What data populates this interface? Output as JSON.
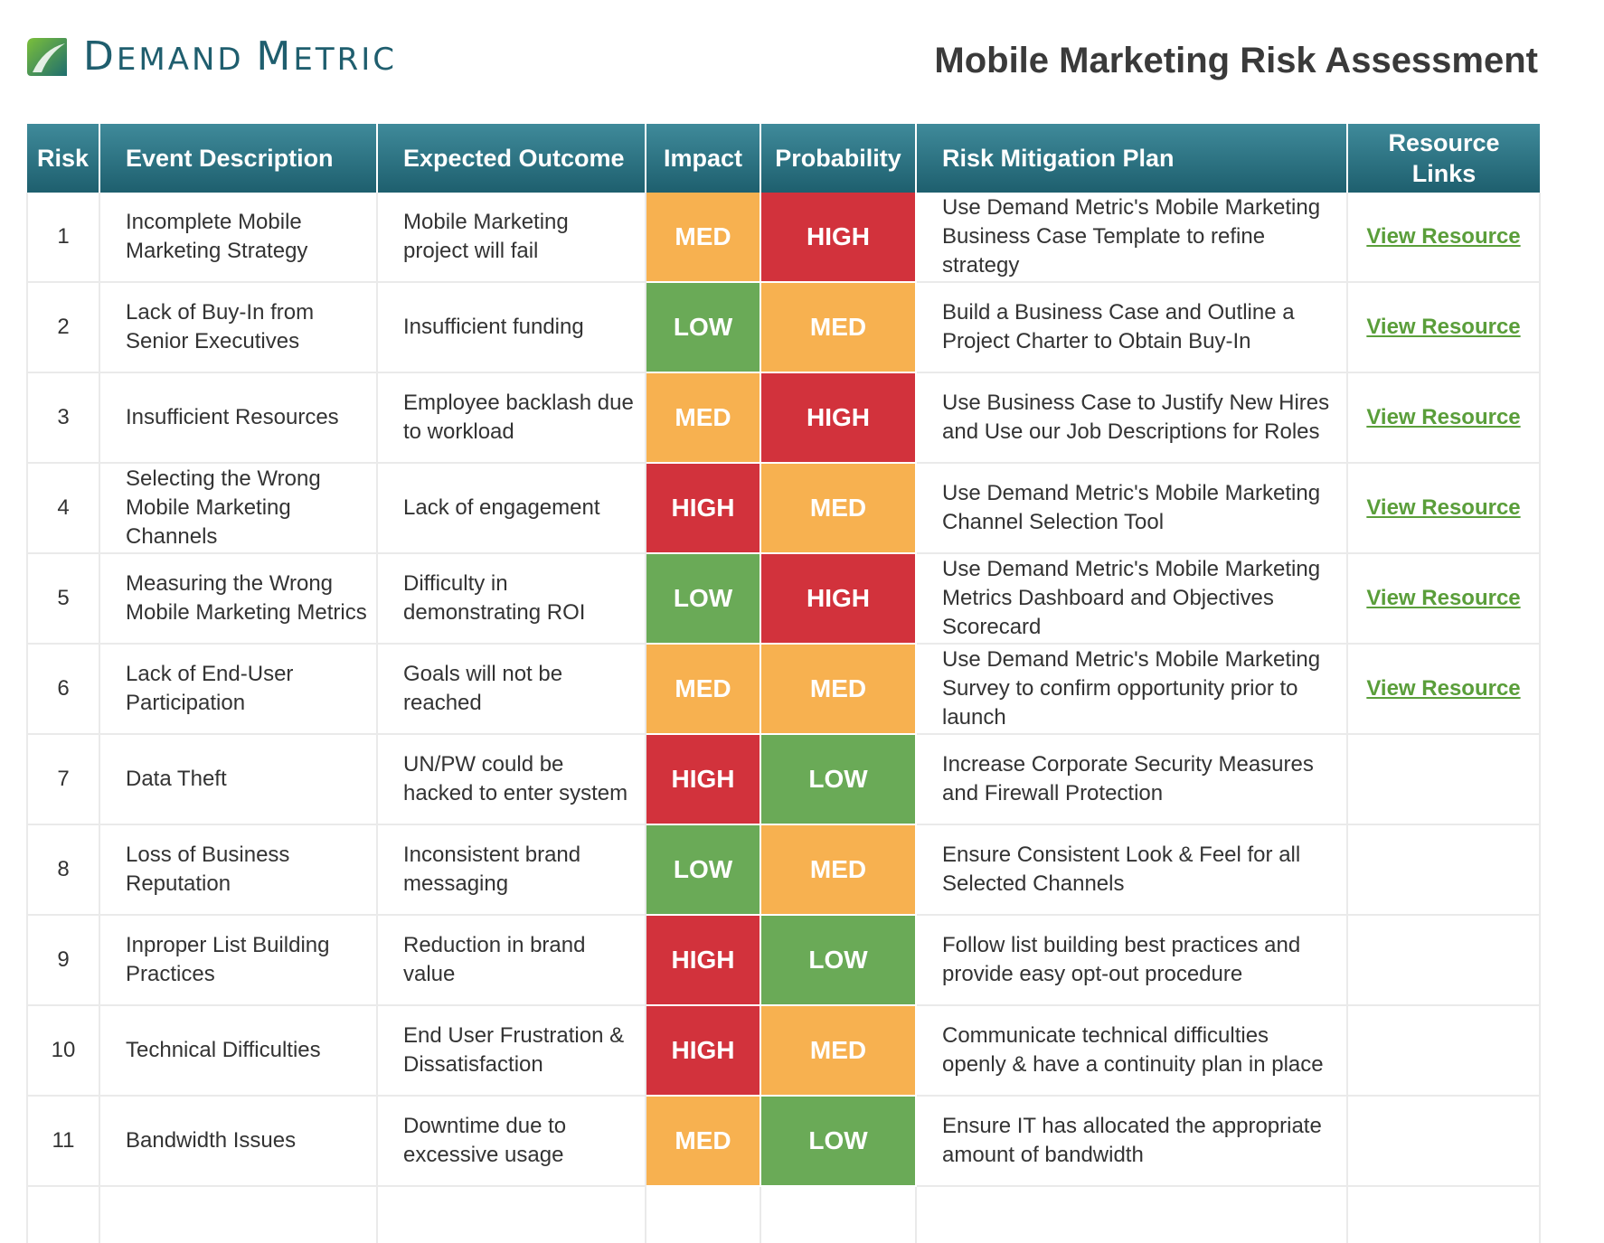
{
  "brand": {
    "name_first_initial": "D",
    "name_first_rest": "EMAND",
    "name_second_initial": "M",
    "name_second_rest": "ETRIC",
    "color": "#1f5e6e"
  },
  "document": {
    "title": "Mobile Marketing Risk Assessment"
  },
  "table": {
    "headers": {
      "risk": "Risk",
      "event": "Event Description",
      "outcome": "Expected Outcome",
      "impact": "Impact",
      "probability": "Probability",
      "plan": "Risk Mitigation Plan",
      "links_line1": "Resource",
      "links_line2": "Links"
    },
    "level_colors": {
      "HIGH": "#d2323c",
      "MED": "#f7b150",
      "LOW": "#6aaa57"
    },
    "rows": [
      {
        "num": "1",
        "event": "Incomplete Mobile Marketing Strategy",
        "outcome": "Mobile Marketing project will fail",
        "impact": "MED",
        "probability": "HIGH",
        "plan": "Use Demand Metric's Mobile Marketing Business Case Template to refine strategy",
        "link": "View Resource"
      },
      {
        "num": "2",
        "event": "Lack of Buy-In from Senior Executives",
        "outcome": "Insufficient funding",
        "impact": "LOW",
        "probability": "MED",
        "plan": "Build a Business Case and Outline a Project Charter to Obtain Buy-In",
        "link": "View Resource"
      },
      {
        "num": "3",
        "event": "Insufficient Resources",
        "outcome": "Employee backlash due to workload",
        "impact": "MED",
        "probability": "HIGH",
        "plan": "Use Business Case to Justify New Hires and Use our Job Descriptions for Roles",
        "link": "View Resource"
      },
      {
        "num": "4",
        "event": "Selecting the Wrong Mobile Marketing Channels",
        "outcome": "Lack of engagement",
        "impact": "HIGH",
        "probability": "MED",
        "plan": "Use Demand Metric's Mobile Marketing Channel Selection Tool",
        "link": "View Resource"
      },
      {
        "num": "5",
        "event": "Measuring the Wrong Mobile Marketing Metrics",
        "outcome": "Difficulty in demonstrating ROI",
        "impact": "LOW",
        "probability": "HIGH",
        "plan": "Use Demand Metric's Mobile Marketing Metrics Dashboard and Objectives Scorecard",
        "link": "View Resource"
      },
      {
        "num": "6",
        "event": "Lack of End-User Participation",
        "outcome": "Goals will not be reached",
        "impact": "MED",
        "probability": "MED",
        "plan": "Use Demand Metric's Mobile Marketing Survey to confirm opportunity prior to launch",
        "link": "View Resource"
      },
      {
        "num": "7",
        "event": "Data Theft",
        "outcome": "UN/PW could be hacked to enter system",
        "impact": "HIGH",
        "probability": "LOW",
        "plan": "Increase Corporate Security Measures and Firewall Protection",
        "link": ""
      },
      {
        "num": "8",
        "event": "Loss of Business Reputation",
        "outcome": "Inconsistent brand messaging",
        "impact": "LOW",
        "probability": "MED",
        "plan": "Ensure Consistent Look & Feel for all Selected Channels",
        "link": ""
      },
      {
        "num": "9",
        "event": "Inproper List Building Practices",
        "outcome": "Reduction in brand value",
        "impact": "HIGH",
        "probability": "LOW",
        "plan": "Follow list building best practices and provide easy opt-out procedure",
        "link": ""
      },
      {
        "num": "10",
        "event": "Technical Difficulties",
        "outcome": "End User Frustration & Dissatisfaction",
        "impact": "HIGH",
        "probability": "MED",
        "plan": "Communicate technical difficulties openly & have a continuity plan in place",
        "link": ""
      },
      {
        "num": "11",
        "event": "Bandwidth Issues",
        "outcome": "Downtime due to excessive usage",
        "impact": "MED",
        "probability": "LOW",
        "plan": "Ensure IT has allocated the appropriate amount of bandwidth",
        "link": ""
      }
    ]
  }
}
